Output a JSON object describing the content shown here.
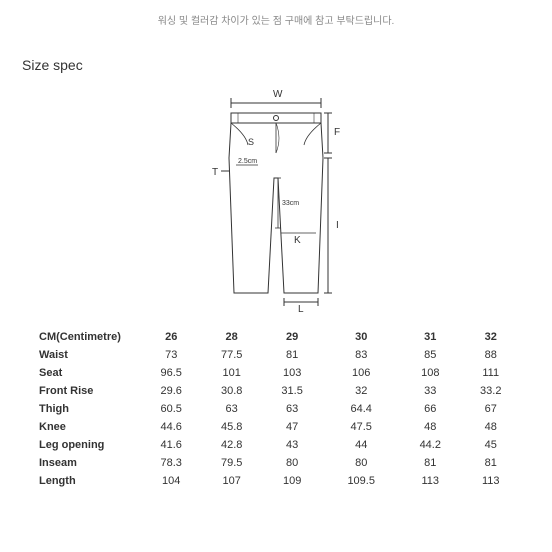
{
  "notice_text": "워싱 및 컬러감 차이가 있는 점 구매에 참고 부탁드립니다.",
  "section_title": "Size spec",
  "diagram": {
    "labels": {
      "W": "W",
      "F": "F",
      "S": "S",
      "T": "T",
      "K": "K",
      "I": "I",
      "L": "L",
      "m1": "2.5cm",
      "m2": "33cm"
    },
    "stroke": "#333333",
    "stroke_width": 1
  },
  "table": {
    "header": [
      "CM(Centimetre)",
      "26",
      "28",
      "29",
      "30",
      "31",
      "32"
    ],
    "rows": [
      [
        "Waist",
        "73",
        "77.5",
        "81",
        "83",
        "85",
        "88"
      ],
      [
        "Seat",
        "96.5",
        "101",
        "103",
        "106",
        "108",
        "111"
      ],
      [
        "Front Rise",
        "29.6",
        "30.8",
        "31.5",
        "32",
        "33",
        "33.2"
      ],
      [
        "Thigh",
        "60.5",
        "63",
        "63",
        "64.4",
        "66",
        "67"
      ],
      [
        "Knee",
        "44.6",
        "45.8",
        "47",
        "47.5",
        "48",
        "48"
      ],
      [
        "Leg opening",
        "41.6",
        "42.8",
        "43",
        "44",
        "44.2",
        "45"
      ],
      [
        "Inseam",
        "78.3",
        "79.5",
        "80",
        "80",
        "81",
        "81"
      ],
      [
        "Length",
        "104",
        "107",
        "109",
        "109.5",
        "113",
        "113"
      ]
    ],
    "font_size": 11,
    "text_color": "#333333"
  }
}
